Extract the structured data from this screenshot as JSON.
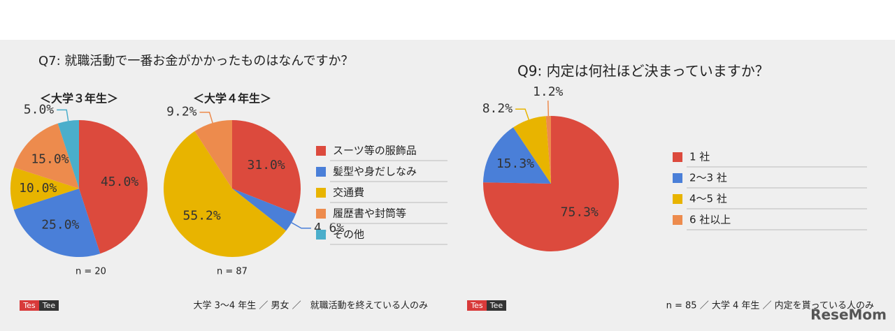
{
  "panels": [
    {
      "title": "Q7: 就職活動で一番お金がかかったものはなんですか？",
      "logo": [
        "Tes",
        "Tee"
      ],
      "footer": "大学 3～4 年生 ／ 男女 ／　就職活動を終えている人のみ"
    },
    {
      "title": "Q9: 内定は何社ほど決まっていますか？",
      "logo": [
        "Tes",
        "Tee"
      ],
      "footer": "n = 85 ／ 大学 4 年生 ／ 内定を貰っている人のみ"
    }
  ],
  "watermark": "ReseMom",
  "chart_data": [
    {
      "type": "pie",
      "title": "＜大学３年生＞",
      "note": "n = 20",
      "categories": [
        "スーツ等の服飾品",
        "髪型や身だしなみ",
        "交通費",
        "履歴書や封筒等",
        "その他"
      ],
      "colors": [
        "#dc4a3d",
        "#4a7fd8",
        "#e8b400",
        "#ed8b4d",
        "#4aaecb"
      ],
      "values": [
        45.0,
        25.0,
        10.0,
        15.0,
        5.0
      ],
      "value_labels": [
        "45.0%",
        "25.0%",
        "10.0%",
        "15.0%",
        "5.0%"
      ]
    },
    {
      "type": "pie",
      "title": "＜大学４年生＞",
      "note": "n = 87",
      "colors": [
        "#dc4a3d",
        "#4a7fd8",
        "#e8b400",
        "#ed8b4d"
      ],
      "values": [
        31.0,
        4.6,
        55.2,
        9.2
      ],
      "value_labels": [
        "31.0%",
        "4.6%",
        "55.2%",
        "9.2%"
      ]
    },
    {
      "type": "pie",
      "categories": [
        "1 社",
        "2～3 社",
        "4～5 社",
        "6 社以上"
      ],
      "colors": [
        "#dc4a3d",
        "#4a7fd8",
        "#e8b400",
        "#ed8b4d"
      ],
      "values": [
        75.3,
        15.3,
        8.2,
        1.2
      ],
      "value_labels": [
        "75.3%",
        "15.3%",
        "8.2%",
        "1.2%"
      ]
    }
  ]
}
